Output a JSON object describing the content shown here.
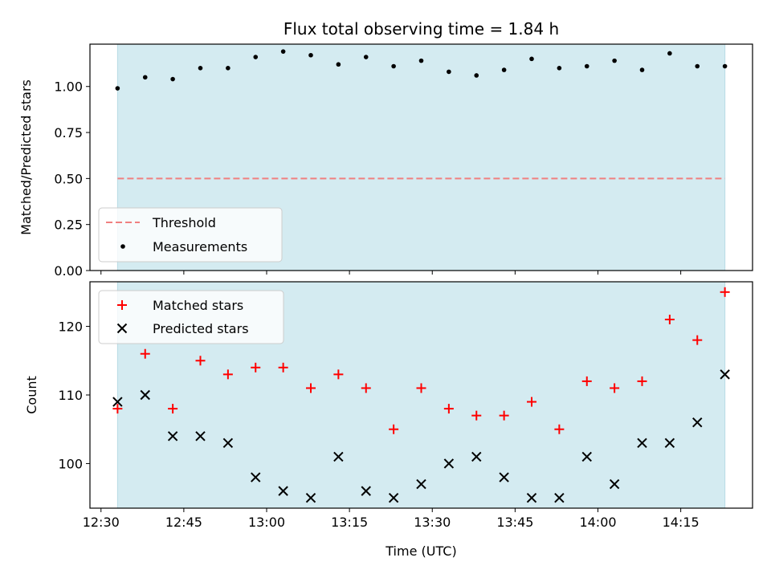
{
  "chart_data": [
    {
      "type": "scatter",
      "title": "Flux total observing time = 1.84 h",
      "xlabel": "",
      "ylabel": "Matched/Predicted stars",
      "xlim": [
        "12:28",
        "14:28"
      ],
      "ylim": [
        0,
        1.23
      ],
      "yticks": [
        0.0,
        0.25,
        0.5,
        0.75,
        1.0
      ],
      "ytick_labels": [
        "0.00",
        "0.25",
        "0.50",
        "0.75",
        "1.00"
      ],
      "observing_window": [
        "12:33",
        "14:23"
      ],
      "window_color": "#d4ebf1",
      "threshold": {
        "name": "Threshold",
        "value": 0.5,
        "color": "#f08080",
        "style": "dashed"
      },
      "series": [
        {
          "name": "Measurements",
          "color": "#000000",
          "marker": "dot",
          "x": [
            "12:33",
            "12:38",
            "12:43",
            "12:48",
            "12:53",
            "12:58",
            "13:03",
            "13:08",
            "13:13",
            "13:18",
            "13:23",
            "13:28",
            "13:33",
            "13:38",
            "13:43",
            "13:48",
            "13:53",
            "13:58",
            "14:03",
            "14:08",
            "14:13",
            "14:18",
            "14:23"
          ],
          "y": [
            0.99,
            1.05,
            1.04,
            1.1,
            1.1,
            1.16,
            1.19,
            1.17,
            1.12,
            1.16,
            1.11,
            1.14,
            1.08,
            1.06,
            1.09,
            1.15,
            1.1,
            1.11,
            1.14,
            1.09,
            1.18,
            1.11,
            1.11
          ]
        }
      ],
      "legend": "lower-left"
    },
    {
      "type": "scatter",
      "title": "",
      "xlabel": "Time (UTC)",
      "ylabel": "Count",
      "xlim": [
        "12:28",
        "14:28"
      ],
      "ylim": [
        93.5,
        126.5
      ],
      "xticks": [
        "12:30",
        "12:45",
        "13:00",
        "13:15",
        "13:30",
        "13:45",
        "14:00",
        "14:15"
      ],
      "yticks": [
        100,
        110,
        120
      ],
      "ytick_labels": [
        "100",
        "110",
        "120"
      ],
      "observing_window": [
        "12:33",
        "14:23"
      ],
      "window_color": "#d4ebf1",
      "series": [
        {
          "name": "Matched stars",
          "color": "#ff0000",
          "marker": "plus",
          "x": [
            "12:33",
            "12:38",
            "12:43",
            "12:48",
            "12:53",
            "12:58",
            "13:03",
            "13:08",
            "13:13",
            "13:18",
            "13:23",
            "13:28",
            "13:33",
            "13:38",
            "13:43",
            "13:48",
            "13:53",
            "13:58",
            "14:03",
            "14:08",
            "14:13",
            "14:18",
            "14:23"
          ],
          "y": [
            108,
            116,
            108,
            115,
            113,
            114,
            114,
            111,
            113,
            111,
            105,
            111,
            108,
            107,
            107,
            109,
            105,
            112,
            111,
            112,
            121,
            118,
            125
          ]
        },
        {
          "name": "Predicted stars",
          "color": "#000000",
          "marker": "x",
          "x": [
            "12:33",
            "12:38",
            "12:43",
            "12:48",
            "12:53",
            "12:58",
            "13:03",
            "13:08",
            "13:13",
            "13:18",
            "13:23",
            "13:28",
            "13:33",
            "13:38",
            "13:43",
            "13:48",
            "13:53",
            "13:58",
            "14:03",
            "14:08",
            "14:13",
            "14:18",
            "14:23"
          ],
          "y": [
            109,
            110,
            104,
            104,
            103,
            98,
            96,
            95,
            101,
            96,
            95,
            97,
            100,
            101,
            98,
            95,
            95,
            101,
            97,
            103,
            103,
            106,
            113
          ]
        }
      ],
      "legend": "upper-left"
    }
  ]
}
